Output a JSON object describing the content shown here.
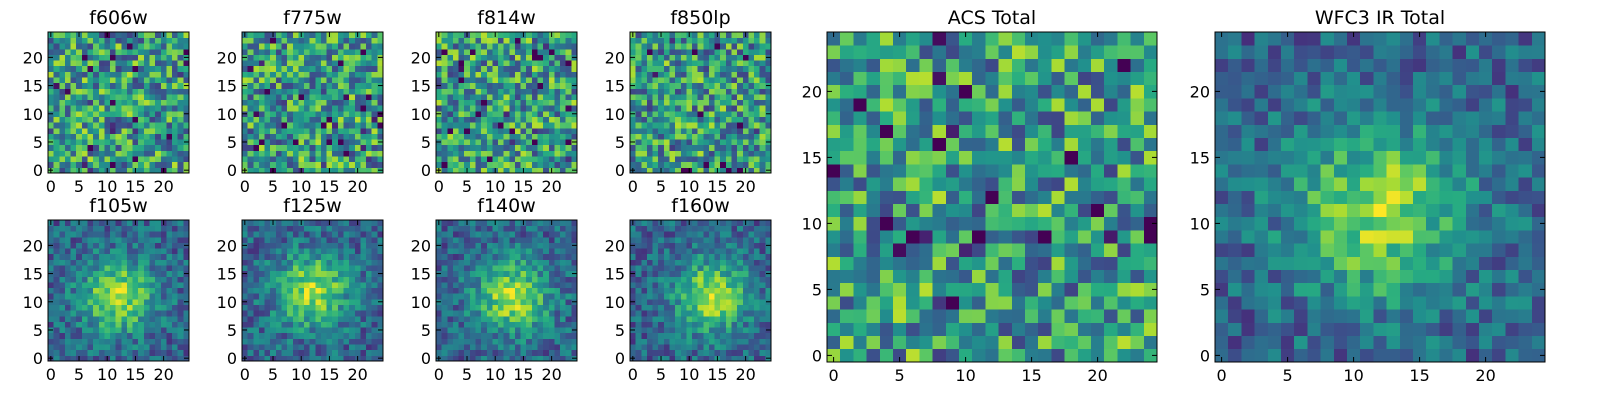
{
  "figure": {
    "panels": [
      {
        "title": "f606w",
        "xticks": [
          "0",
          "5",
          "10",
          "15",
          "20"
        ],
        "yticks": [
          "0",
          "5",
          "10",
          "15",
          "20"
        ]
      },
      {
        "title": "f775w",
        "xticks": [
          "0",
          "5",
          "10",
          "15",
          "20"
        ],
        "yticks": [
          "0",
          "5",
          "10",
          "15",
          "20"
        ]
      },
      {
        "title": "f814w",
        "xticks": [
          "0",
          "5",
          "10",
          "15",
          "20"
        ],
        "yticks": [
          "0",
          "5",
          "10",
          "15",
          "20"
        ]
      },
      {
        "title": "f850lp",
        "xticks": [
          "0",
          "5",
          "10",
          "15",
          "20"
        ],
        "yticks": [
          "0",
          "5",
          "10",
          "15",
          "20"
        ]
      },
      {
        "title": "f105w",
        "xticks": [
          "0",
          "5",
          "10",
          "15",
          "20"
        ],
        "yticks": [
          "0",
          "5",
          "10",
          "15",
          "20"
        ]
      },
      {
        "title": "f125w",
        "xticks": [
          "0",
          "5",
          "10",
          "15",
          "20"
        ],
        "yticks": [
          "0",
          "5",
          "10",
          "15",
          "20"
        ]
      },
      {
        "title": "f140w",
        "xticks": [
          "0",
          "5",
          "10",
          "15",
          "20"
        ],
        "yticks": [
          "0",
          "5",
          "10",
          "15",
          "20"
        ]
      },
      {
        "title": "f160w",
        "xticks": [
          "0",
          "5",
          "10",
          "15",
          "20"
        ],
        "yticks": [
          "0",
          "5",
          "10",
          "15",
          "20"
        ]
      },
      {
        "title": "ACS Total",
        "xticks": [
          "0",
          "5",
          "10",
          "15",
          "20"
        ],
        "yticks": [
          "0",
          "5",
          "10",
          "15",
          "20"
        ]
      },
      {
        "title": "WFC3 IR Total",
        "xticks": [
          "0",
          "5",
          "10",
          "15",
          "20"
        ],
        "yticks": [
          "0",
          "5",
          "10",
          "15",
          "20"
        ]
      }
    ]
  },
  "chart_data": [
    {
      "type": "heatmap",
      "title": "f606w",
      "grid_size": [
        25,
        25
      ],
      "colormap": "viridis",
      "x_range": [
        -0.5,
        24.5
      ],
      "y_range": [
        -0.5,
        24.5
      ],
      "pattern": "noise",
      "center": [
        12,
        12
      ]
    },
    {
      "type": "heatmap",
      "title": "f775w",
      "grid_size": [
        25,
        25
      ],
      "colormap": "viridis",
      "x_range": [
        -0.5,
        24.5
      ],
      "y_range": [
        -0.5,
        24.5
      ],
      "pattern": "noise",
      "center": [
        12,
        12
      ]
    },
    {
      "type": "heatmap",
      "title": "f814w",
      "grid_size": [
        25,
        25
      ],
      "colormap": "viridis",
      "x_range": [
        -0.5,
        24.5
      ],
      "y_range": [
        -0.5,
        24.5
      ],
      "pattern": "noise",
      "center": [
        12,
        12
      ]
    },
    {
      "type": "heatmap",
      "title": "f850lp",
      "grid_size": [
        25,
        25
      ],
      "colormap": "viridis",
      "x_range": [
        -0.5,
        24.5
      ],
      "y_range": [
        -0.5,
        24.5
      ],
      "pattern": "noise",
      "center": [
        12,
        12
      ]
    },
    {
      "type": "heatmap",
      "title": "f105w",
      "grid_size": [
        25,
        25
      ],
      "colormap": "viridis",
      "x_range": [
        -0.5,
        24.5
      ],
      "y_range": [
        -0.5,
        24.5
      ],
      "pattern": "source",
      "center": [
        12,
        11
      ]
    },
    {
      "type": "heatmap",
      "title": "f125w",
      "grid_size": [
        25,
        25
      ],
      "colormap": "viridis",
      "x_range": [
        -0.5,
        24.5
      ],
      "y_range": [
        -0.5,
        24.5
      ],
      "pattern": "source",
      "center": [
        12,
        12
      ]
    },
    {
      "type": "heatmap",
      "title": "f140w",
      "grid_size": [
        25,
        25
      ],
      "colormap": "viridis",
      "x_range": [
        -0.5,
        24.5
      ],
      "y_range": [
        -0.5,
        24.5
      ],
      "pattern": "source",
      "center": [
        13,
        11
      ]
    },
    {
      "type": "heatmap",
      "title": "f160w",
      "grid_size": [
        25,
        25
      ],
      "colormap": "viridis",
      "x_range": [
        -0.5,
        24.5
      ],
      "y_range": [
        -0.5,
        24.5
      ],
      "pattern": "source",
      "center": [
        14,
        11
      ]
    },
    {
      "type": "heatmap",
      "title": "ACS Total",
      "grid_size": [
        25,
        25
      ],
      "colormap": "viridis",
      "x_range": [
        -0.5,
        24.5
      ],
      "y_range": [
        -0.5,
        24.5
      ],
      "pattern": "noise",
      "center": [
        12,
        12
      ]
    },
    {
      "type": "heatmap",
      "title": "WFC3 IR Total",
      "grid_size": [
        25,
        25
      ],
      "colormap": "viridis",
      "x_range": [
        -0.5,
        24.5
      ],
      "y_range": [
        -0.5,
        24.5
      ],
      "pattern": "source",
      "center": [
        12,
        11
      ]
    }
  ]
}
